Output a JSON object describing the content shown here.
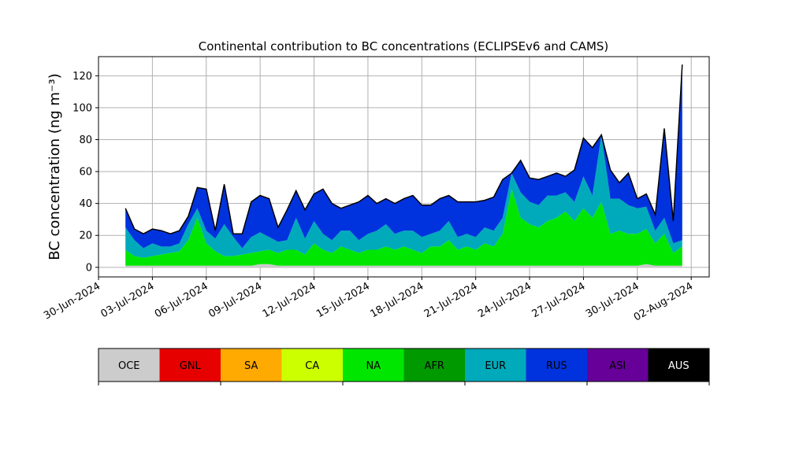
{
  "chart_data": {
    "type": "area",
    "stacked": true,
    "title": "Continental contribution to BC concentrations (ECLIPSEv6 and CAMS)",
    "ylabel": "BC concentration (ng m⁻³)",
    "xlabel": "",
    "ylim": [
      -6,
      132
    ],
    "yticks": [
      0,
      20,
      40,
      60,
      80,
      100,
      120
    ],
    "xlim": [
      "2024-06-30T00:00",
      "2024-08-03T00:00"
    ],
    "xticks": [
      "30-Jun-2024",
      "03-Jul-2024",
      "06-Jul-2024",
      "09-Jul-2024",
      "12-Jul-2024",
      "15-Jul-2024",
      "18-Jul-2024",
      "21-Jul-2024",
      "24-Jul-2024",
      "27-Jul-2024",
      "30-Jul-2024",
      "02-Aug-2024"
    ],
    "xtick_dates": [
      "2024-06-30",
      "2024-07-03",
      "2024-07-06",
      "2024-07-09",
      "2024-07-12",
      "2024-07-15",
      "2024-07-18",
      "2024-07-21",
      "2024-07-24",
      "2024-07-27",
      "2024-07-30",
      "2024-08-02"
    ],
    "grid": true,
    "x": [
      "2024-07-01T12:00",
      "2024-07-02T00:00",
      "2024-07-02T12:00",
      "2024-07-03T00:00",
      "2024-07-03T12:00",
      "2024-07-04T00:00",
      "2024-07-04T12:00",
      "2024-07-05T00:00",
      "2024-07-05T12:00",
      "2024-07-06T00:00",
      "2024-07-06T12:00",
      "2024-07-07T00:00",
      "2024-07-07T12:00",
      "2024-07-08T00:00",
      "2024-07-08T12:00",
      "2024-07-09T00:00",
      "2024-07-09T12:00",
      "2024-07-10T00:00",
      "2024-07-10T12:00",
      "2024-07-11T00:00",
      "2024-07-11T12:00",
      "2024-07-12T00:00",
      "2024-07-12T12:00",
      "2024-07-13T00:00",
      "2024-07-13T12:00",
      "2024-07-14T00:00",
      "2024-07-14T12:00",
      "2024-07-15T00:00",
      "2024-07-15T12:00",
      "2024-07-16T00:00",
      "2024-07-16T12:00",
      "2024-07-17T00:00",
      "2024-07-17T12:00",
      "2024-07-18T00:00",
      "2024-07-18T12:00",
      "2024-07-19T00:00",
      "2024-07-19T12:00",
      "2024-07-20T00:00",
      "2024-07-20T12:00",
      "2024-07-21T00:00",
      "2024-07-21T12:00",
      "2024-07-22T00:00",
      "2024-07-22T12:00",
      "2024-07-23T00:00",
      "2024-07-23T12:00",
      "2024-07-24T00:00",
      "2024-07-24T12:00",
      "2024-07-25T00:00",
      "2024-07-25T12:00",
      "2024-07-26T00:00",
      "2024-07-26T12:00",
      "2024-07-27T00:00",
      "2024-07-27T12:00",
      "2024-07-28T00:00",
      "2024-07-28T12:00",
      "2024-07-29T00:00",
      "2024-07-29T12:00",
      "2024-07-30T00:00",
      "2024-07-30T12:00",
      "2024-07-31T00:00",
      "2024-07-31T12:00",
      "2024-08-01T00:00",
      "2024-08-01T12:00"
    ],
    "series": [
      {
        "name": "OCE",
        "color": "#cccccc",
        "values": [
          1,
          1,
          1,
          1,
          1,
          1,
          1,
          1,
          1,
          1,
          1,
          1,
          1,
          1,
          1,
          2,
          2,
          1,
          1,
          1,
          1,
          1,
          1,
          1,
          1,
          1,
          1,
          1,
          1,
          1,
          1,
          1,
          1,
          1,
          1,
          1,
          1,
          1,
          1,
          1,
          1,
          1,
          1,
          1,
          1,
          1,
          1,
          1,
          1,
          1,
          1,
          1,
          1,
          1,
          1,
          1,
          1,
          1,
          2,
          1,
          1,
          1,
          1
        ]
      },
      {
        "name": "GNL",
        "color": "#e60000",
        "values": [
          0,
          0,
          0,
          0,
          0,
          0,
          0,
          0,
          0,
          0,
          0,
          0,
          0,
          0,
          0,
          0,
          0,
          0,
          0,
          0,
          0,
          0,
          0,
          0,
          0,
          0,
          0,
          0,
          0,
          0,
          0,
          0,
          0,
          0,
          0,
          0,
          0,
          0,
          0,
          0,
          0,
          0,
          0,
          0,
          0,
          0,
          0,
          0,
          0,
          0,
          0,
          0,
          0,
          0,
          0,
          0,
          0,
          0,
          0,
          0,
          0,
          0,
          0
        ]
      },
      {
        "name": "SA",
        "color": "#ffaa00",
        "values": [
          0,
          0,
          0,
          0,
          0,
          0,
          0,
          0,
          0,
          0,
          0,
          0,
          0,
          0,
          0,
          0,
          0,
          0,
          0,
          0,
          0,
          0,
          0,
          0,
          0,
          0,
          0,
          0,
          0,
          0,
          0,
          0,
          0,
          0,
          0,
          0,
          0,
          0,
          0,
          0,
          0,
          0,
          0,
          0,
          0,
          0,
          0,
          0,
          0,
          0,
          0,
          0,
          0,
          0,
          0,
          0,
          0,
          0,
          0,
          0,
          0,
          0,
          0
        ]
      },
      {
        "name": "CA",
        "color": "#ccff00",
        "values": [
          0,
          0,
          0,
          0,
          0,
          0,
          0,
          0,
          0,
          0,
          0,
          0,
          0,
          0,
          0,
          0,
          0,
          0,
          0,
          0,
          0,
          0,
          0,
          0,
          0,
          0,
          0,
          0,
          0,
          0,
          0,
          0,
          0,
          0,
          0,
          0,
          0,
          0,
          0,
          0,
          0,
          0,
          0,
          0,
          0,
          0,
          0,
          0,
          0,
          0,
          0,
          0,
          0,
          0,
          0,
          0,
          0,
          0,
          0,
          0,
          0,
          0,
          0
        ]
      },
      {
        "name": "NA",
        "color": "#00e600",
        "values": [
          10,
          6,
          5,
          6,
          7,
          8,
          9,
          16,
          30,
          14,
          9,
          6,
          6,
          7,
          8,
          8,
          9,
          8,
          10,
          10,
          7,
          14,
          10,
          8,
          12,
          10,
          8,
          10,
          10,
          12,
          10,
          12,
          10,
          8,
          12,
          12,
          16,
          10,
          12,
          10,
          14,
          12,
          20,
          48,
          30,
          26,
          24,
          28,
          30,
          34,
          28,
          36,
          30,
          40,
          20,
          22,
          20,
          20,
          22,
          14,
          20,
          8,
          12
        ]
      },
      {
        "name": "AFR",
        "color": "#009900",
        "values": [
          0,
          0,
          0,
          0,
          0,
          0,
          0,
          0,
          0,
          0,
          0,
          0,
          0,
          0,
          0,
          0,
          0,
          0,
          0,
          0,
          0,
          0,
          0,
          0,
          0,
          0,
          0,
          0,
          0,
          0,
          0,
          0,
          0,
          0,
          0,
          0,
          0,
          0,
          0,
          0,
          0,
          0,
          0,
          0,
          0,
          0,
          0,
          0,
          0,
          0,
          0,
          0,
          0,
          0,
          0,
          0,
          0,
          0,
          0,
          0,
          0,
          0,
          0
        ]
      },
      {
        "name": "EUR",
        "color": "#00aabb",
        "values": [
          14,
          10,
          6,
          8,
          5,
          4,
          5,
          10,
          6,
          8,
          8,
          20,
          12,
          4,
          10,
          12,
          8,
          7,
          6,
          20,
          10,
          14,
          10,
          8,
          10,
          12,
          8,
          10,
          12,
          14,
          10,
          10,
          12,
          10,
          8,
          10,
          12,
          8,
          8,
          8,
          10,
          10,
          10,
          10,
          16,
          14,
          14,
          16,
          14,
          12,
          12,
          20,
          14,
          42,
          22,
          20,
          18,
          16,
          14,
          8,
          10,
          6,
          4
        ]
      },
      {
        "name": "RUS",
        "color": "#0033dd",
        "values": [
          12,
          7,
          9,
          9,
          10,
          8,
          8,
          5,
          13,
          26,
          5,
          25,
          2,
          9,
          22,
          23,
          24,
          9,
          19,
          17,
          18,
          17,
          28,
          23,
          14,
          16,
          24,
          24,
          17,
          16,
          19,
          20,
          22,
          20,
          18,
          20,
          16,
          22,
          20,
          22,
          17,
          21,
          24,
          0,
          20,
          15,
          16,
          12,
          14,
          10,
          20,
          24,
          30,
          0,
          18,
          10,
          20,
          6,
          8,
          10,
          56,
          14,
          110
        ]
      },
      {
        "name": "ASI",
        "color": "#660099",
        "values": [
          0,
          0,
          0,
          0,
          0,
          0,
          0,
          0,
          0,
          0,
          0,
          0,
          0,
          0,
          0,
          0,
          0,
          0,
          0,
          0,
          0,
          0,
          0,
          0,
          0,
          0,
          0,
          0,
          0,
          0,
          0,
          0,
          0,
          0,
          0,
          0,
          0,
          0,
          0,
          0,
          0,
          0,
          0,
          0,
          0,
          0,
          0,
          0,
          0,
          0,
          0,
          0,
          0,
          0,
          0,
          0,
          0,
          0,
          0,
          0,
          0,
          0,
          0
        ]
      },
      {
        "name": "AUS",
        "color": "#000000",
        "values": [
          0,
          0,
          0,
          0,
          0,
          0,
          0,
          0,
          0,
          0,
          0,
          0,
          0,
          0,
          0,
          0,
          0,
          0,
          0,
          0,
          0,
          0,
          0,
          0,
          0,
          0,
          0,
          0,
          0,
          0,
          0,
          0,
          0,
          0,
          0,
          0,
          0,
          0,
          0,
          0,
          0,
          0,
          0,
          0,
          0,
          0,
          0,
          0,
          0,
          0,
          0,
          0,
          0,
          0,
          0,
          0,
          0,
          0,
          0,
          0,
          0,
          0,
          0
        ]
      }
    ]
  }
}
